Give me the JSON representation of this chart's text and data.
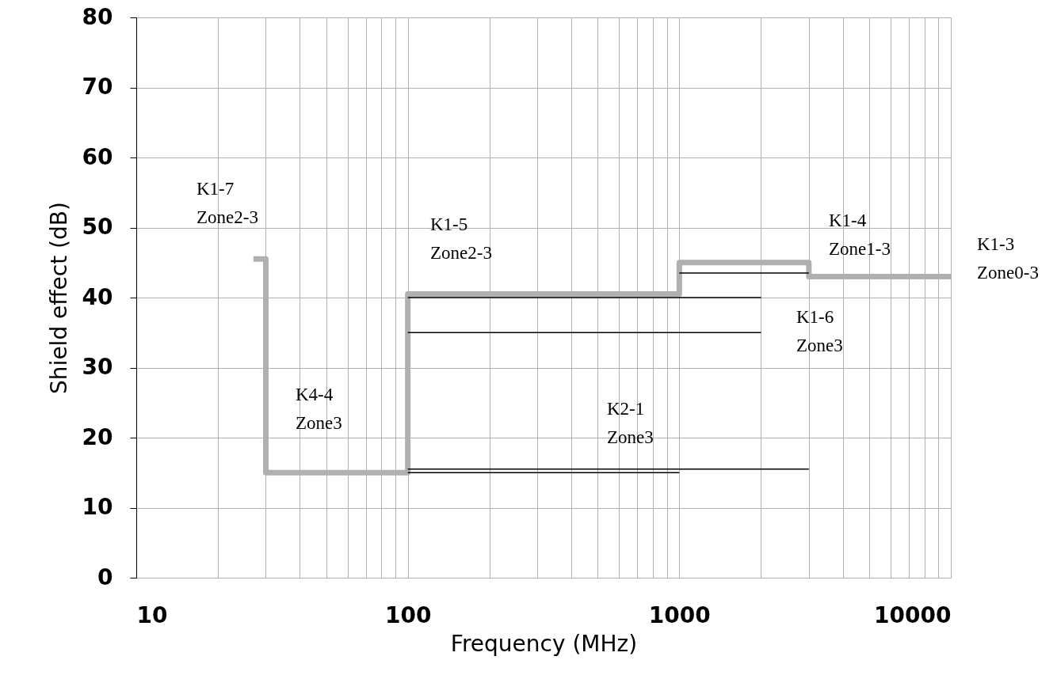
{
  "chart_data": {
    "type": "line",
    "xlabel": "Frequency (MHz)",
    "ylabel": "Shield effect (dB)",
    "log": "x",
    "grid": true,
    "marker": "none",
    "line_style": "solid",
    "xlim": [
      10,
      10000
    ],
    "ylim": [
      0,
      80
    ],
    "xticks": [
      10,
      {
        "value": 20,
        "label": null
      },
      {
        "value": 30,
        "label": null
      },
      {
        "value": 40,
        "label": null
      },
      {
        "value": 50,
        "label": null
      },
      {
        "value": 60,
        "label": null
      },
      {
        "value": 70,
        "label": null
      },
      {
        "value": 80,
        "label": null
      },
      {
        "value": 90,
        "label": null
      },
      100,
      {
        "value": 200,
        "label": null
      },
      {
        "value": 300,
        "label": null
      },
      {
        "value": 400,
        "label": null
      },
      {
        "value": 500,
        "label": null
      },
      {
        "value": 600,
        "label": null
      },
      {
        "value": 700,
        "label": null
      },
      {
        "value": 800,
        "label": null
      },
      {
        "value": 900,
        "label": null
      },
      1000,
      {
        "value": 2000,
        "label": null
      },
      {
        "value": 3000,
        "label": null
      },
      {
        "value": 4000,
        "label": null
      },
      {
        "value": 5000,
        "label": null
      },
      {
        "value": 6000,
        "label": null
      },
      {
        "value": 7000,
        "label": null
      },
      {
        "value": 8000,
        "label": null
      },
      {
        "value": 9000,
        "label": null
      },
      10000
    ],
    "yticks": [
      0,
      10,
      20,
      30,
      40,
      50,
      60,
      70,
      80
    ],
    "series": [
      {
        "color": "#b0b0b0",
        "x": [
          27,
          30,
          30,
          100,
          100,
          1000,
          1000,
          3000,
          3000,
          10000
        ],
        "values": [
          45.5,
          45.5,
          15,
          15,
          40.5,
          40.5,
          45,
          45,
          43,
          43
        ]
      },
      {
        "color": "#000000",
        "x": [
          100,
          2000
        ],
        "values": [
          40,
          40
        ]
      },
      {
        "color": "#000000",
        "x": [
          100,
          2000
        ],
        "values": [
          35,
          35
        ]
      },
      {
        "color": "#000000",
        "x": [
          100,
          3000
        ],
        "values": [
          15.5,
          15.5
        ]
      },
      {
        "color": "#000000",
        "x": [
          100,
          1000
        ],
        "values": [
          15,
          15
        ]
      },
      {
        "color": "#000000",
        "x": [
          1000,
          3000
        ],
        "values": [
          43.5,
          43.5
        ]
      }
    ],
    "annotations": [
      "K1-7\nZone2-3",
      "K1-5\nZone2-3",
      "K4-4\nZone3",
      "K2-1\nZone3",
      "K1-6\nZone3",
      "K1-4\nZone1-3",
      "K1-3\nZone0-3"
    ]
  }
}
